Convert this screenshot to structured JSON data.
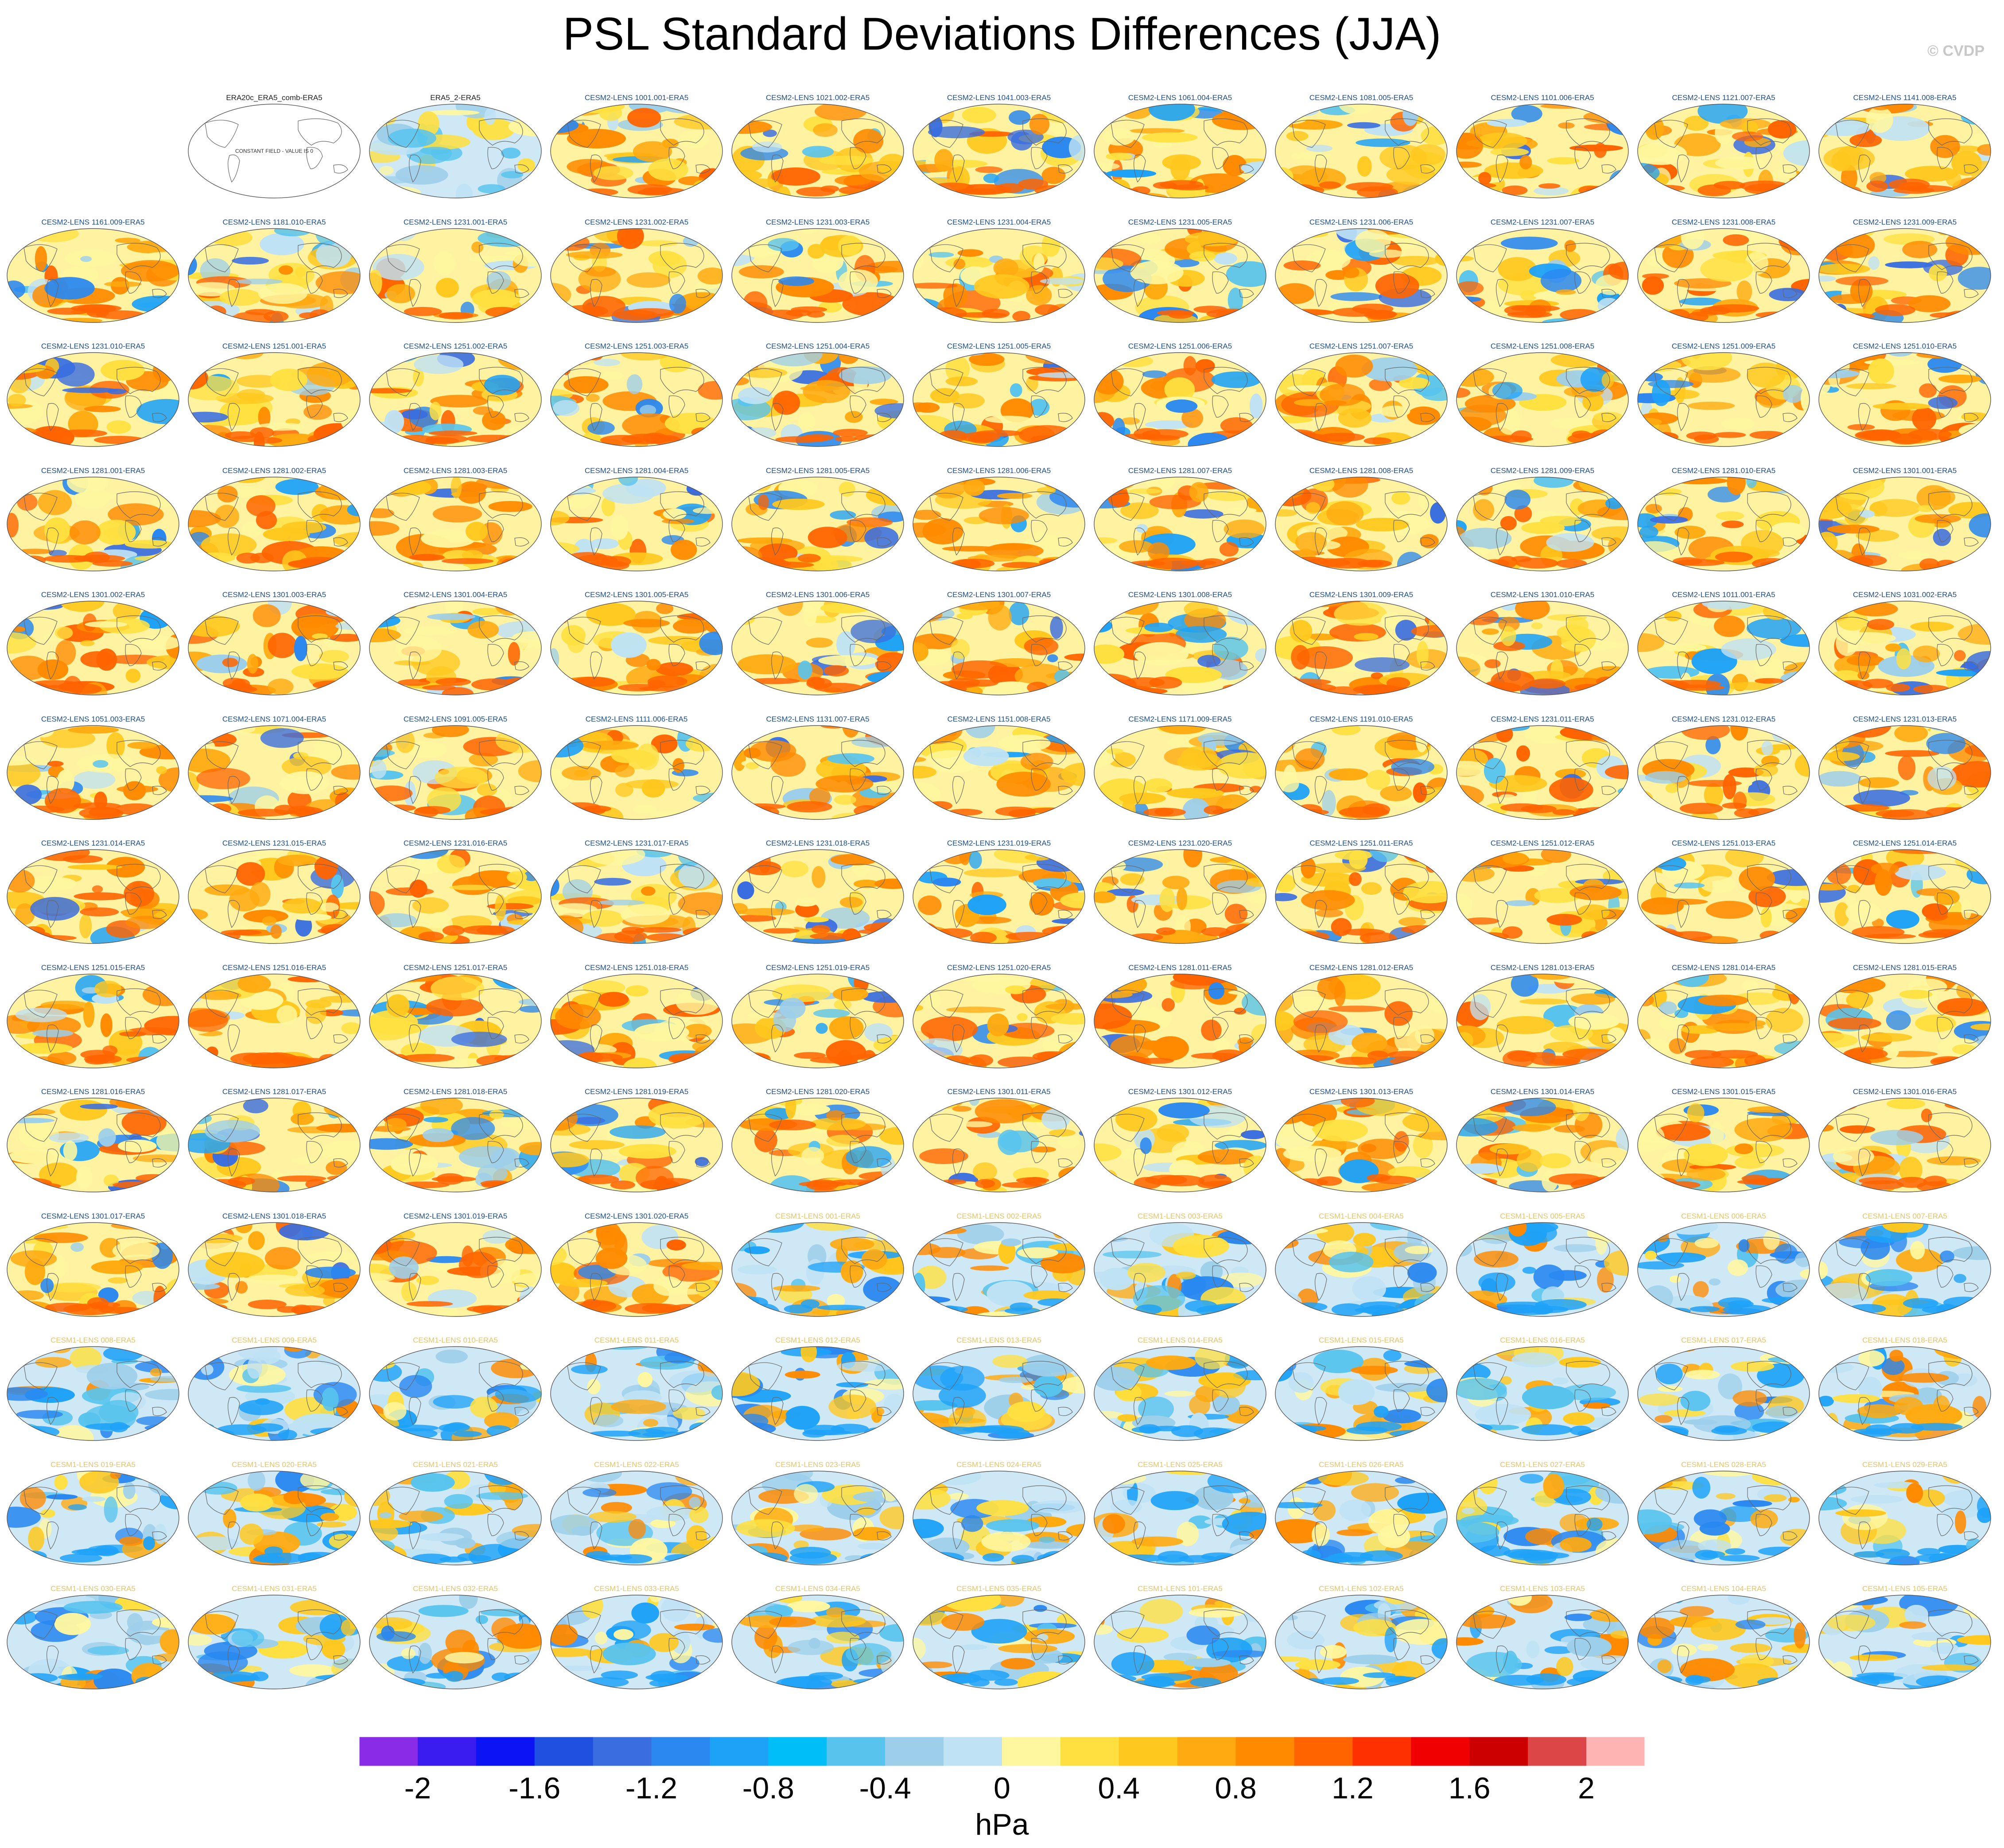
{
  "title": "PSL Standard Deviations Differences (JJA)",
  "credit": "© CVDP",
  "chart_data": {
    "type": "heatmap",
    "grid": {
      "rows": 13,
      "cols": 11
    },
    "colorbar": {
      "units": "hPa",
      "levels": [
        -2.2,
        -2.0,
        -1.8,
        -1.6,
        -1.4,
        -1.2,
        -1.0,
        -0.8,
        -0.6,
        -0.4,
        -0.2,
        0,
        0.2,
        0.4,
        0.6,
        0.8,
        1.0,
        1.2,
        1.4,
        1.6,
        1.8,
        2.0,
        2.2
      ],
      "colors": [
        "#8a2be8",
        "#3a1cf0",
        "#0a14f5",
        "#2050e0",
        "#3a6ee0",
        "#2a88f0",
        "#1ea2f8",
        "#00bef8",
        "#58c4ee",
        "#9ecfea",
        "#bfe2f4",
        "#fff7a0",
        "#ffe040",
        "#ffc81e",
        "#ffaa10",
        "#ff8a00",
        "#ff6400",
        "#ff3000",
        "#f00000",
        "#cc0000",
        "#dc4646",
        "#ffb4b4"
      ],
      "tick_labels": [
        "-2",
        "-1.6",
        "-1.2",
        "-0.8",
        "-0.4",
        "0",
        "0.4",
        "0.8",
        "1.2",
        "1.6",
        "2"
      ]
    },
    "panels": [
      {
        "label": "",
        "type": "blank"
      },
      {
        "label": "ERA20c_ERA5_comb-ERA5",
        "type": "constant",
        "note": "CONSTANT FIELD - VALUE IS 0"
      },
      {
        "label": "ERA5_2-ERA5",
        "type": "obs"
      },
      {
        "label": "CESM2-LENS 1001.001-ERA5",
        "type": "cesm2"
      },
      {
        "label": "CESM2-LENS 1021.002-ERA5",
        "type": "cesm2"
      },
      {
        "label": "CESM2-LENS 1041.003-ERA5",
        "type": "cesm2"
      },
      {
        "label": "CESM2-LENS 1061.004-ERA5",
        "type": "cesm2"
      },
      {
        "label": "CESM2-LENS 1081.005-ERA5",
        "type": "cesm2"
      },
      {
        "label": "CESM2-LENS 1101.006-ERA5",
        "type": "cesm2"
      },
      {
        "label": "CESM2-LENS 1121.007-ERA5",
        "type": "cesm2"
      },
      {
        "label": "CESM2-LENS 1141.008-ERA5",
        "type": "cesm2"
      },
      {
        "label": "CESM2-LENS 1161.009-ERA5",
        "type": "cesm2"
      },
      {
        "label": "CESM2-LENS 1181.010-ERA5",
        "type": "cesm2"
      },
      {
        "label": "CESM2-LENS 1231.001-ERA5",
        "type": "cesm2"
      },
      {
        "label": "CESM2-LENS 1231.002-ERA5",
        "type": "cesm2"
      },
      {
        "label": "CESM2-LENS 1231.003-ERA5",
        "type": "cesm2"
      },
      {
        "label": "CESM2-LENS 1231.004-ERA5",
        "type": "cesm2"
      },
      {
        "label": "CESM2-LENS 1231.005-ERA5",
        "type": "cesm2"
      },
      {
        "label": "CESM2-LENS 1231.006-ERA5",
        "type": "cesm2"
      },
      {
        "label": "CESM2-LENS 1231.007-ERA5",
        "type": "cesm2"
      },
      {
        "label": "CESM2-LENS 1231.008-ERA5",
        "type": "cesm2"
      },
      {
        "label": "CESM2-LENS 1231.009-ERA5",
        "type": "cesm2"
      },
      {
        "label": "CESM2-LENS 1231.010-ERA5",
        "type": "cesm2"
      },
      {
        "label": "CESM2-LENS 1251.001-ERA5",
        "type": "cesm2"
      },
      {
        "label": "CESM2-LENS 1251.002-ERA5",
        "type": "cesm2"
      },
      {
        "label": "CESM2-LENS 1251.003-ERA5",
        "type": "cesm2"
      },
      {
        "label": "CESM2-LENS 1251.004-ERA5",
        "type": "cesm2"
      },
      {
        "label": "CESM2-LENS 1251.005-ERA5",
        "type": "cesm2"
      },
      {
        "label": "CESM2-LENS 1251.006-ERA5",
        "type": "cesm2"
      },
      {
        "label": "CESM2-LENS 1251.007-ERA5",
        "type": "cesm2"
      },
      {
        "label": "CESM2-LENS 1251.008-ERA5",
        "type": "cesm2"
      },
      {
        "label": "CESM2-LENS 1251.009-ERA5",
        "type": "cesm2"
      },
      {
        "label": "CESM2-LENS 1251.010-ERA5",
        "type": "cesm2"
      },
      {
        "label": "CESM2-LENS 1281.001-ERA5",
        "type": "cesm2"
      },
      {
        "label": "CESM2-LENS 1281.002-ERA5",
        "type": "cesm2"
      },
      {
        "label": "CESM2-LENS 1281.003-ERA5",
        "type": "cesm2"
      },
      {
        "label": "CESM2-LENS 1281.004-ERA5",
        "type": "cesm2"
      },
      {
        "label": "CESM2-LENS 1281.005-ERA5",
        "type": "cesm2"
      },
      {
        "label": "CESM2-LENS 1281.006-ERA5",
        "type": "cesm2"
      },
      {
        "label": "CESM2-LENS 1281.007-ERA5",
        "type": "cesm2"
      },
      {
        "label": "CESM2-LENS 1281.008-ERA5",
        "type": "cesm2"
      },
      {
        "label": "CESM2-LENS 1281.009-ERA5",
        "type": "cesm2"
      },
      {
        "label": "CESM2-LENS 1281.010-ERA5",
        "type": "cesm2"
      },
      {
        "label": "CESM2-LENS 1301.001-ERA5",
        "type": "cesm2"
      },
      {
        "label": "CESM2-LENS 1301.002-ERA5",
        "type": "cesm2"
      },
      {
        "label": "CESM2-LENS 1301.003-ERA5",
        "type": "cesm2"
      },
      {
        "label": "CESM2-LENS 1301.004-ERA5",
        "type": "cesm2"
      },
      {
        "label": "CESM2-LENS 1301.005-ERA5",
        "type": "cesm2"
      },
      {
        "label": "CESM2-LENS 1301.006-ERA5",
        "type": "cesm2"
      },
      {
        "label": "CESM2-LENS 1301.007-ERA5",
        "type": "cesm2"
      },
      {
        "label": "CESM2-LENS 1301.008-ERA5",
        "type": "cesm2"
      },
      {
        "label": "CESM2-LENS 1301.009-ERA5",
        "type": "cesm2"
      },
      {
        "label": "CESM2-LENS 1301.010-ERA5",
        "type": "cesm2"
      },
      {
        "label": "CESM2-LENS 1011.001-ERA5",
        "type": "cesm2"
      },
      {
        "label": "CESM2-LENS 1031.002-ERA5",
        "type": "cesm2"
      },
      {
        "label": "CESM2-LENS 1051.003-ERA5",
        "type": "cesm2"
      },
      {
        "label": "CESM2-LENS 1071.004-ERA5",
        "type": "cesm2"
      },
      {
        "label": "CESM2-LENS 1091.005-ERA5",
        "type": "cesm2"
      },
      {
        "label": "CESM2-LENS 1111.006-ERA5",
        "type": "cesm2"
      },
      {
        "label": "CESM2-LENS 1131.007-ERA5",
        "type": "cesm2"
      },
      {
        "label": "CESM2-LENS 1151.008-ERA5",
        "type": "cesm2"
      },
      {
        "label": "CESM2-LENS 1171.009-ERA5",
        "type": "cesm2"
      },
      {
        "label": "CESM2-LENS 1191.010-ERA5",
        "type": "cesm2"
      },
      {
        "label": "CESM2-LENS 1231.011-ERA5",
        "type": "cesm2"
      },
      {
        "label": "CESM2-LENS 1231.012-ERA5",
        "type": "cesm2"
      },
      {
        "label": "CESM2-LENS 1231.013-ERA5",
        "type": "cesm2"
      },
      {
        "label": "CESM2-LENS 1231.014-ERA5",
        "type": "cesm2"
      },
      {
        "label": "CESM2-LENS 1231.015-ERA5",
        "type": "cesm2"
      },
      {
        "label": "CESM2-LENS 1231.016-ERA5",
        "type": "cesm2"
      },
      {
        "label": "CESM2-LENS 1231.017-ERA5",
        "type": "cesm2"
      },
      {
        "label": "CESM2-LENS 1231.018-ERA5",
        "type": "cesm2"
      },
      {
        "label": "CESM2-LENS 1231.019-ERA5",
        "type": "cesm2"
      },
      {
        "label": "CESM2-LENS 1231.020-ERA5",
        "type": "cesm2"
      },
      {
        "label": "CESM2-LENS 1251.011-ERA5",
        "type": "cesm2"
      },
      {
        "label": "CESM2-LENS 1251.012-ERA5",
        "type": "cesm2"
      },
      {
        "label": "CESM2-LENS 1251.013-ERA5",
        "type": "cesm2"
      },
      {
        "label": "CESM2-LENS 1251.014-ERA5",
        "type": "cesm2"
      },
      {
        "label": "CESM2-LENS 1251.015-ERA5",
        "type": "cesm2"
      },
      {
        "label": "CESM2-LENS 1251.016-ERA5",
        "type": "cesm2"
      },
      {
        "label": "CESM2-LENS 1251.017-ERA5",
        "type": "cesm2"
      },
      {
        "label": "CESM2-LENS 1251.018-ERA5",
        "type": "cesm2"
      },
      {
        "label": "CESM2-LENS 1251.019-ERA5",
        "type": "cesm2"
      },
      {
        "label": "CESM2-LENS 1251.020-ERA5",
        "type": "cesm2"
      },
      {
        "label": "CESM2-LENS 1281.011-ERA5",
        "type": "cesm2"
      },
      {
        "label": "CESM2-LENS 1281.012-ERA5",
        "type": "cesm2"
      },
      {
        "label": "CESM2-LENS 1281.013-ERA5",
        "type": "cesm2"
      },
      {
        "label": "CESM2-LENS 1281.014-ERA5",
        "type": "cesm2"
      },
      {
        "label": "CESM2-LENS 1281.015-ERA5",
        "type": "cesm2"
      },
      {
        "label": "CESM2-LENS 1281.016-ERA5",
        "type": "cesm2"
      },
      {
        "label": "CESM2-LENS 1281.017-ERA5",
        "type": "cesm2"
      },
      {
        "label": "CESM2-LENS 1281.018-ERA5",
        "type": "cesm2"
      },
      {
        "label": "CESM2-LENS 1281.019-ERA5",
        "type": "cesm2"
      },
      {
        "label": "CESM2-LENS 1281.020-ERA5",
        "type": "cesm2"
      },
      {
        "label": "CESM2-LENS 1301.011-ERA5",
        "type": "cesm2"
      },
      {
        "label": "CESM2-LENS 1301.012-ERA5",
        "type": "cesm2"
      },
      {
        "label": "CESM2-LENS 1301.013-ERA5",
        "type": "cesm2"
      },
      {
        "label": "CESM2-LENS 1301.014-ERA5",
        "type": "cesm2"
      },
      {
        "label": "CESM2-LENS 1301.015-ERA5",
        "type": "cesm2"
      },
      {
        "label": "CESM2-LENS 1301.016-ERA5",
        "type": "cesm2"
      },
      {
        "label": "CESM2-LENS 1301.017-ERA5",
        "type": "cesm2"
      },
      {
        "label": "CESM2-LENS 1301.018-ERA5",
        "type": "cesm2"
      },
      {
        "label": "CESM2-LENS 1301.019-ERA5",
        "type": "cesm2"
      },
      {
        "label": "CESM2-LENS 1301.020-ERA5",
        "type": "cesm2"
      },
      {
        "label": "CESM1-LENS 001-ERA5",
        "type": "cesm1"
      },
      {
        "label": "CESM1-LENS 002-ERA5",
        "type": "cesm1"
      },
      {
        "label": "CESM1-LENS 003-ERA5",
        "type": "cesm1"
      },
      {
        "label": "CESM1-LENS 004-ERA5",
        "type": "cesm1"
      },
      {
        "label": "CESM1-LENS 005-ERA5",
        "type": "cesm1"
      },
      {
        "label": "CESM1-LENS 006-ERA5",
        "type": "cesm1"
      },
      {
        "label": "CESM1-LENS 007-ERA5",
        "type": "cesm1"
      },
      {
        "label": "CESM1-LENS 008-ERA5",
        "type": "cesm1"
      },
      {
        "label": "CESM1-LENS 009-ERA5",
        "type": "cesm1"
      },
      {
        "label": "CESM1-LENS 010-ERA5",
        "type": "cesm1"
      },
      {
        "label": "CESM1-LENS 011-ERA5",
        "type": "cesm1"
      },
      {
        "label": "CESM1-LENS 012-ERA5",
        "type": "cesm1"
      },
      {
        "label": "CESM1-LENS 013-ERA5",
        "type": "cesm1"
      },
      {
        "label": "CESM1-LENS 014-ERA5",
        "type": "cesm1"
      },
      {
        "label": "CESM1-LENS 015-ERA5",
        "type": "cesm1"
      },
      {
        "label": "CESM1-LENS 016-ERA5",
        "type": "cesm1"
      },
      {
        "label": "CESM1-LENS 017-ERA5",
        "type": "cesm1"
      },
      {
        "label": "CESM1-LENS 018-ERA5",
        "type": "cesm1"
      },
      {
        "label": "CESM1-LENS 019-ERA5",
        "type": "cesm1"
      },
      {
        "label": "CESM1-LENS 020-ERA5",
        "type": "cesm1"
      },
      {
        "label": "CESM1-LENS 021-ERA5",
        "type": "cesm1"
      },
      {
        "label": "CESM1-LENS 022-ERA5",
        "type": "cesm1"
      },
      {
        "label": "CESM1-LENS 023-ERA5",
        "type": "cesm1"
      },
      {
        "label": "CESM1-LENS 024-ERA5",
        "type": "cesm1"
      },
      {
        "label": "CESM1-LENS 025-ERA5",
        "type": "cesm1"
      },
      {
        "label": "CESM1-LENS 026-ERA5",
        "type": "cesm1"
      },
      {
        "label": "CESM1-LENS 027-ERA5",
        "type": "cesm1"
      },
      {
        "label": "CESM1-LENS 028-ERA5",
        "type": "cesm1"
      },
      {
        "label": "CESM1-LENS 029-ERA5",
        "type": "cesm1"
      },
      {
        "label": "CESM1-LENS 030-ERA5",
        "type": "cesm1"
      },
      {
        "label": "CESM1-LENS 031-ERA5",
        "type": "cesm1"
      },
      {
        "label": "CESM1-LENS 032-ERA5",
        "type": "cesm1"
      },
      {
        "label": "CESM1-LENS 033-ERA5",
        "type": "cesm1"
      },
      {
        "label": "CESM1-LENS 034-ERA5",
        "type": "cesm1"
      },
      {
        "label": "CESM1-LENS 035-ERA5",
        "type": "cesm1"
      },
      {
        "label": "CESM1-LENS 101-ERA5",
        "type": "cesm1"
      },
      {
        "label": "CESM1-LENS 102-ERA5",
        "type": "cesm1"
      },
      {
        "label": "CESM1-LENS 103-ERA5",
        "type": "cesm1"
      },
      {
        "label": "CESM1-LENS 104-ERA5",
        "type": "cesm1"
      },
      {
        "label": "CESM1-LENS 105-ERA5",
        "type": "cesm1"
      }
    ]
  }
}
